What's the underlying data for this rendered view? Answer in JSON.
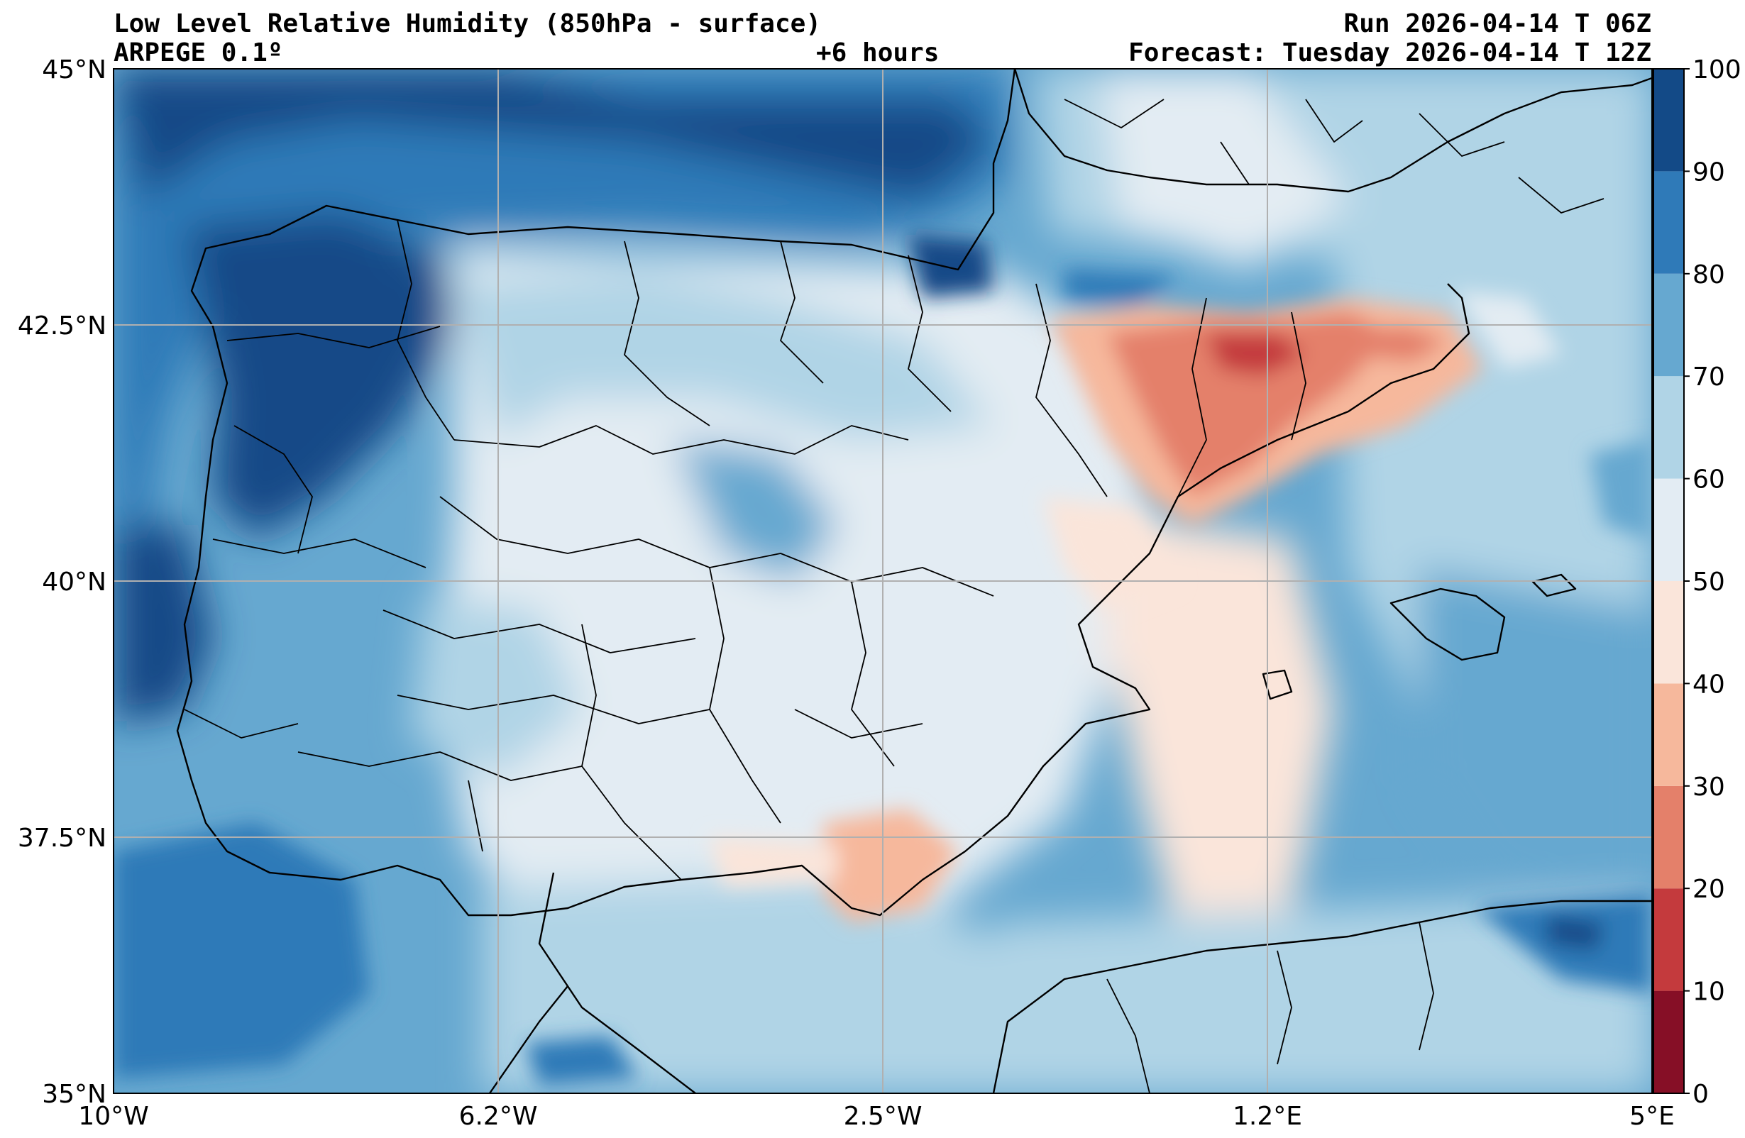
{
  "header": {
    "title": "Low Level Relative Humidity (850hPa - surface)",
    "model": "ARPEGE 0.1º",
    "lead_time": "+6 hours",
    "run": "Run 2026-04-14 T 06Z",
    "forecast": "Forecast: Tuesday 2026-04-14 T 12Z"
  },
  "map": {
    "extent": {
      "lon_min": -10,
      "lon_max": 5,
      "lat_min": 35,
      "lat_max": 45
    },
    "longitude_ticks": [
      {
        "value": -10,
        "label": "10°W"
      },
      {
        "value": -6.25,
        "label": "6.2°W"
      },
      {
        "value": -2.5,
        "label": "2.5°W"
      },
      {
        "value": 1.25,
        "label": "1.2°E"
      },
      {
        "value": 5,
        "label": "5°E"
      }
    ],
    "latitude_ticks": [
      {
        "value": 45,
        "label": "45°N"
      },
      {
        "value": 42.5,
        "label": "42.5°N"
      },
      {
        "value": 40,
        "label": "40°N"
      },
      {
        "value": 37.5,
        "label": "37.5°N"
      },
      {
        "value": 35,
        "label": "35°N"
      }
    ],
    "gridlines": true
  },
  "colorbar": {
    "labels": [
      "0",
      "10",
      "20",
      "30",
      "40",
      "50",
      "60",
      "70",
      "80",
      "90",
      "100"
    ],
    "bins": [
      {
        "from": 0,
        "to": 10,
        "color": "#860f26"
      },
      {
        "from": 10,
        "to": 20,
        "color": "#c43a3d"
      },
      {
        "from": 20,
        "to": 30,
        "color": "#e4806a"
      },
      {
        "from": 30,
        "to": 40,
        "color": "#f6b89c"
      },
      {
        "from": 40,
        "to": 50,
        "color": "#fae5da"
      },
      {
        "from": 50,
        "to": 60,
        "color": "#e3ecf3"
      },
      {
        "from": 60,
        "to": 70,
        "color": "#b0d4e6"
      },
      {
        "from": 70,
        "to": 80,
        "color": "#66a8d0"
      },
      {
        "from": 80,
        "to": 90,
        "color": "#2f7ab8"
      },
      {
        "from": 90,
        "to": 100,
        "color": "#134a87"
      }
    ]
  }
}
